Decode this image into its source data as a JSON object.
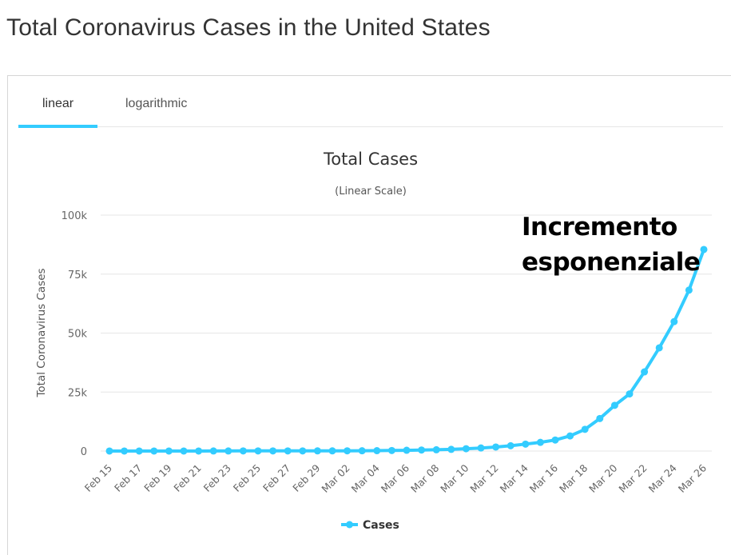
{
  "page": {
    "title": "Total Coronavirus Cases in the United States"
  },
  "tabs": [
    {
      "label": "linear",
      "active": true
    },
    {
      "label": "logarithmic",
      "active": false
    }
  ],
  "annotation": {
    "line1": "Incremento",
    "line2": "esponenziale"
  },
  "colors": {
    "series": "#33ccff",
    "grid": "#e6e6e6",
    "text": "#333333",
    "tick": "#666666"
  },
  "chart_data": {
    "type": "line",
    "title": "Total Cases",
    "subtitle": "(Linear Scale)",
    "ylabel": "Total Coronavirus Cases",
    "xlabel": "",
    "ylim": [
      0,
      100000
    ],
    "yticks": [
      0,
      25000,
      50000,
      75000,
      100000
    ],
    "ytick_labels": [
      "0",
      "25k",
      "50k",
      "75k",
      "100k"
    ],
    "grid": true,
    "legend": "bottom-center",
    "categories": [
      "Feb 15",
      "Feb 16",
      "Feb 17",
      "Feb 18",
      "Feb 19",
      "Feb 20",
      "Feb 21",
      "Feb 22",
      "Feb 23",
      "Feb 24",
      "Feb 25",
      "Feb 26",
      "Feb 27",
      "Feb 28",
      "Feb 29",
      "Mar 01",
      "Mar 02",
      "Mar 03",
      "Mar 04",
      "Mar 05",
      "Mar 06",
      "Mar 07",
      "Mar 08",
      "Mar 09",
      "Mar 10",
      "Mar 11",
      "Mar 12",
      "Mar 13",
      "Mar 14",
      "Mar 15",
      "Mar 16",
      "Mar 17",
      "Mar 18",
      "Mar 19",
      "Mar 20",
      "Mar 21",
      "Mar 22",
      "Mar 23",
      "Mar 24",
      "Mar 25",
      "Mar 26"
    ],
    "xtick_labels": [
      "Feb 15",
      "Feb 17",
      "Feb 19",
      "Feb 21",
      "Feb 23",
      "Feb 25",
      "Feb 27",
      "Feb 29",
      "Mar 02",
      "Mar 04",
      "Mar 06",
      "Mar 08",
      "Mar 10",
      "Mar 12",
      "Mar 14",
      "Mar 16",
      "Mar 18",
      "Mar 20",
      "Mar 22",
      "Mar 24",
      "Mar 26"
    ],
    "series": [
      {
        "name": "Cases",
        "values": [
          15,
          15,
          15,
          15,
          15,
          15,
          15,
          35,
          35,
          53,
          57,
          60,
          60,
          62,
          68,
          75,
          100,
          124,
          158,
          221,
          319,
          435,
          541,
          704,
          994,
          1301,
          1697,
          2247,
          2943,
          3680,
          4663,
          6411,
          9197,
          13779,
          19367,
          24207,
          33546,
          43734,
          54856,
          68211,
          85435
        ]
      }
    ]
  }
}
